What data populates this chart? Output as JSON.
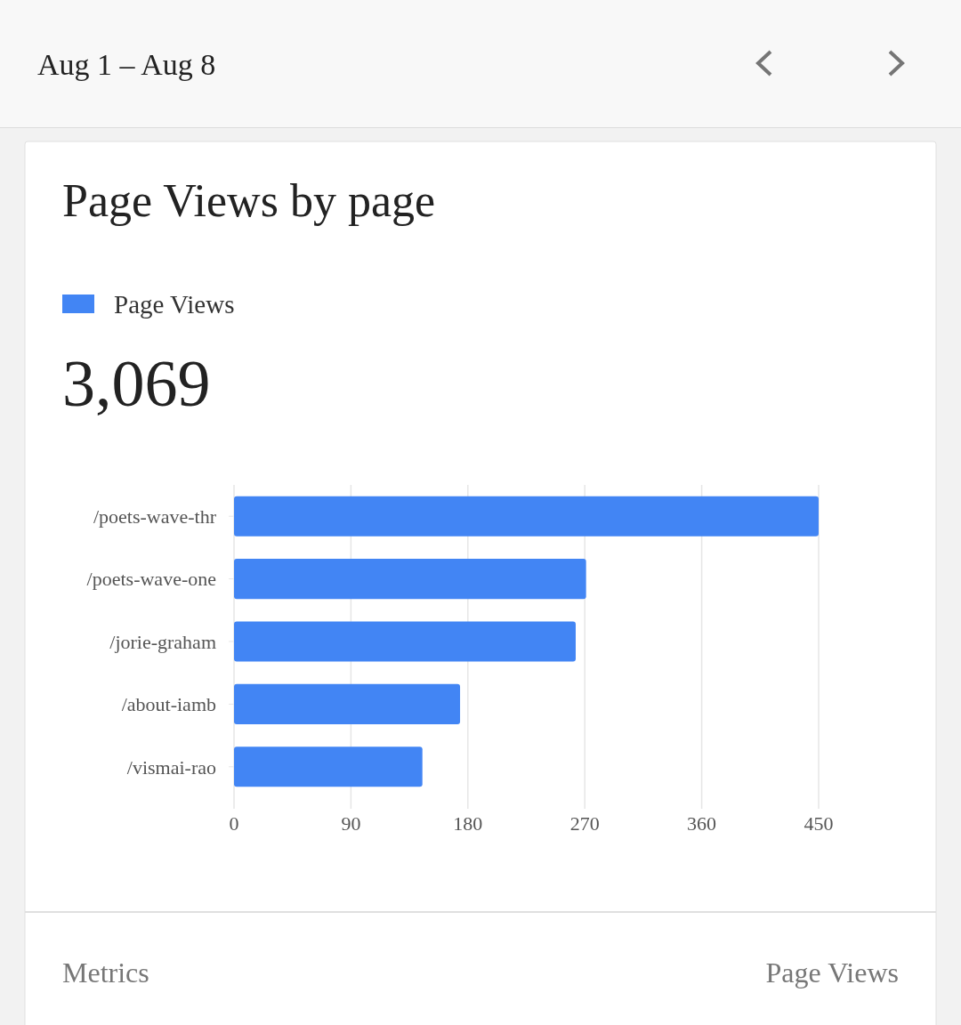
{
  "chart_data": {
    "type": "bar",
    "orientation": "horizontal",
    "title": "Page Views by page",
    "subtitle": "Aug 1 – Aug 8",
    "categories": [
      "/poets-wave-thr",
      "/poets-wave-one",
      "/jorie-graham",
      "/about-iamb",
      "/vismai-rao"
    ],
    "series": [
      {
        "name": "Page Views",
        "color": "#4285f4",
        "values": [
          450,
          271,
          263,
          174,
          145
        ]
      }
    ],
    "xlim": [
      0,
      450
    ],
    "xticks": [
      0,
      90,
      180,
      270,
      360,
      450
    ],
    "grid": "x",
    "legend": "top left",
    "annotations": [
      "3,069",
      "Metrics",
      "Page Views"
    ]
  }
}
